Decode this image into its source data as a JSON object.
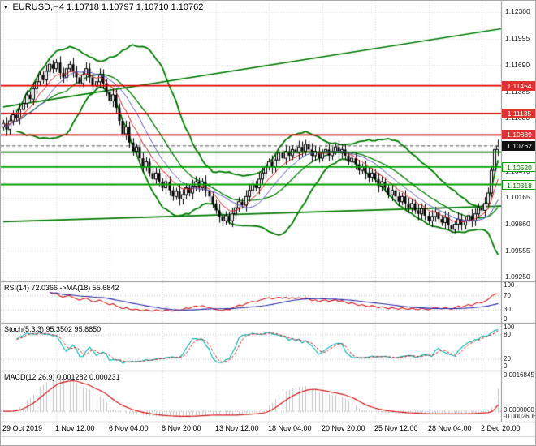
{
  "window": {
    "title": "EURUSD,H4 1.10718 1.10797 1.10710 1.10762"
  },
  "chart_data": {
    "type": "candlestick",
    "symbol": "EURUSD",
    "timeframe": "H4",
    "last_ohlc": {
      "open": "1.10718",
      "high": "1.10797",
      "low": "1.10710",
      "close": "1.10762"
    },
    "price_axis": {
      "ticks": [
        "1.12300",
        "1.11995",
        "1.11690",
        "1.11385",
        "1.11080",
        "1.10775",
        "1.10470",
        "1.10165",
        "1.09860",
        "1.09555",
        "1.09250"
      ],
      "max": 1.123,
      "min": 1.0925,
      "step": 0.00305
    },
    "x_labels": [
      "29 Oct 2019",
      "1 Nov 12:00",
      "6 Nov 04:00",
      "8 Nov 20:00",
      "13 Nov 12:00",
      "18 Nov 04:00",
      "20 Nov 20:00",
      "25 Nov 12:00",
      "28 Nov 04:00",
      "2 Dec 20:00"
    ],
    "x_label_bar_indices": [
      0,
      16,
      32,
      48,
      64,
      80,
      96,
      112,
      128,
      144
    ],
    "closes": [
      1.1102,
      1.1095,
      1.1105,
      1.1112,
      1.1108,
      1.1118,
      1.1125,
      1.1135,
      1.113,
      1.1142,
      1.115,
      1.1158,
      1.1152,
      1.1162,
      1.117,
      1.1165,
      1.1172,
      1.116,
      1.1155,
      1.1165,
      1.117,
      1.1162,
      1.1155,
      1.1148,
      1.1158,
      1.1165,
      1.1155,
      1.1145,
      1.115,
      1.1158,
      1.1148,
      1.1138,
      1.1128,
      1.1135,
      1.112,
      1.1105,
      1.109,
      1.1098,
      1.108,
      1.107,
      1.1075,
      1.1062,
      1.1052,
      1.1058,
      1.1045,
      1.1038,
      1.1045,
      1.1035,
      1.1028,
      1.1035,
      1.1025,
      1.1018,
      1.1024,
      1.1015,
      1.102,
      1.1028,
      1.1022,
      1.103,
      1.1035,
      1.1028,
      1.1035,
      1.1025,
      1.1018,
      1.101,
      1.1002,
      1.0995,
      1.099,
      1.0996,
      1.099,
      1.0998,
      1.1005,
      1.1012,
      1.1008,
      1.1018,
      1.1025,
      1.1032,
      1.1028,
      1.1038,
      1.1045,
      1.1052,
      1.1058,
      1.1052,
      1.106,
      1.1068,
      1.1062,
      1.107,
      1.1065,
      1.1072,
      1.1068,
      1.1075,
      1.107,
      1.1078,
      1.1072,
      1.1065,
      1.107,
      1.1062,
      1.1068,
      1.1072,
      1.1065,
      1.107,
      1.1075,
      1.1068,
      1.1072,
      1.1065,
      1.1058,
      1.1062,
      1.1055,
      1.1048,
      1.1052,
      1.1045,
      1.104,
      1.1045,
      1.1038,
      1.103,
      1.1035,
      1.1028,
      1.102,
      1.1025,
      1.1018,
      1.1012,
      1.1018,
      1.101,
      1.1005,
      1.101,
      1.1002,
      1.0998,
      1.1004,
      1.0996,
      1.099,
      1.0995,
      1.1,
      1.0992,
      1.0988,
      1.0994,
      1.0985,
      1.098,
      1.0986,
      1.0992,
      1.0985,
      1.099,
      1.0996,
      1.099,
      1.0998,
      1.1005,
      1.1002,
      1.101,
      1.1022,
      1.1048,
      1.1072,
      1.1076
    ],
    "levels": {
      "resistance": [
        {
          "price": 1.11454,
          "label": "1.11454"
        },
        {
          "price": 1.11135,
          "label": "1.11135"
        },
        {
          "price": 1.10889,
          "label": "1.10889"
        }
      ],
      "support": [
        {
          "price": 1.1052,
          "label": "1.10520"
        },
        {
          "price": 1.10318,
          "label": "1.10318"
        }
      ],
      "extra": [
        {
          "price": 1.1069
        }
      ],
      "current": {
        "price": 1.10762,
        "label": "1.10762"
      }
    },
    "trendlines": [
      {
        "b1": 0,
        "p1": 1.1121,
        "b2": 150,
        "p2": 1.1211
      },
      {
        "b1": 0,
        "p1": 1.0989,
        "b2": 150,
        "p2": 1.1007
      }
    ],
    "panels": {
      "rsi": {
        "label": "RSI(14) 72.0366 ->MA(18) 55.6842",
        "ticks": [
          "100",
          "70",
          "30",
          "0"
        ],
        "levels": [
          70,
          30
        ]
      },
      "stoch": {
        "label": "Stoch(5,3,3) 95.3502 95.8850",
        "ticks": [
          "100",
          "80",
          "20",
          "0"
        ],
        "levels": [
          80,
          20
        ]
      },
      "macd": {
        "label": "MACD(12,26,9) 0.001282 0.000231",
        "ticks": [
          "0.0016845",
          "0.0000000",
          "-0.0002605"
        ]
      }
    },
    "colors": {
      "resistance": "#e00000",
      "support": "#00a000",
      "extra_level": "#006a00",
      "bands": "#007a00",
      "trend": "#007a00",
      "ma_fast": "#cc2020",
      "ma_slow": "#5858c0",
      "rsi": "#d01818",
      "rsi_ma": "#2828a8",
      "stoch_k": "#00b2b2",
      "stoch_d": "#d01818",
      "macd_signal": "#d01818",
      "macd_hist": "#c4c4c4",
      "grid": "#d9d9d9",
      "axis": "#909090",
      "candle": "#000000",
      "current": "#555555"
    }
  }
}
